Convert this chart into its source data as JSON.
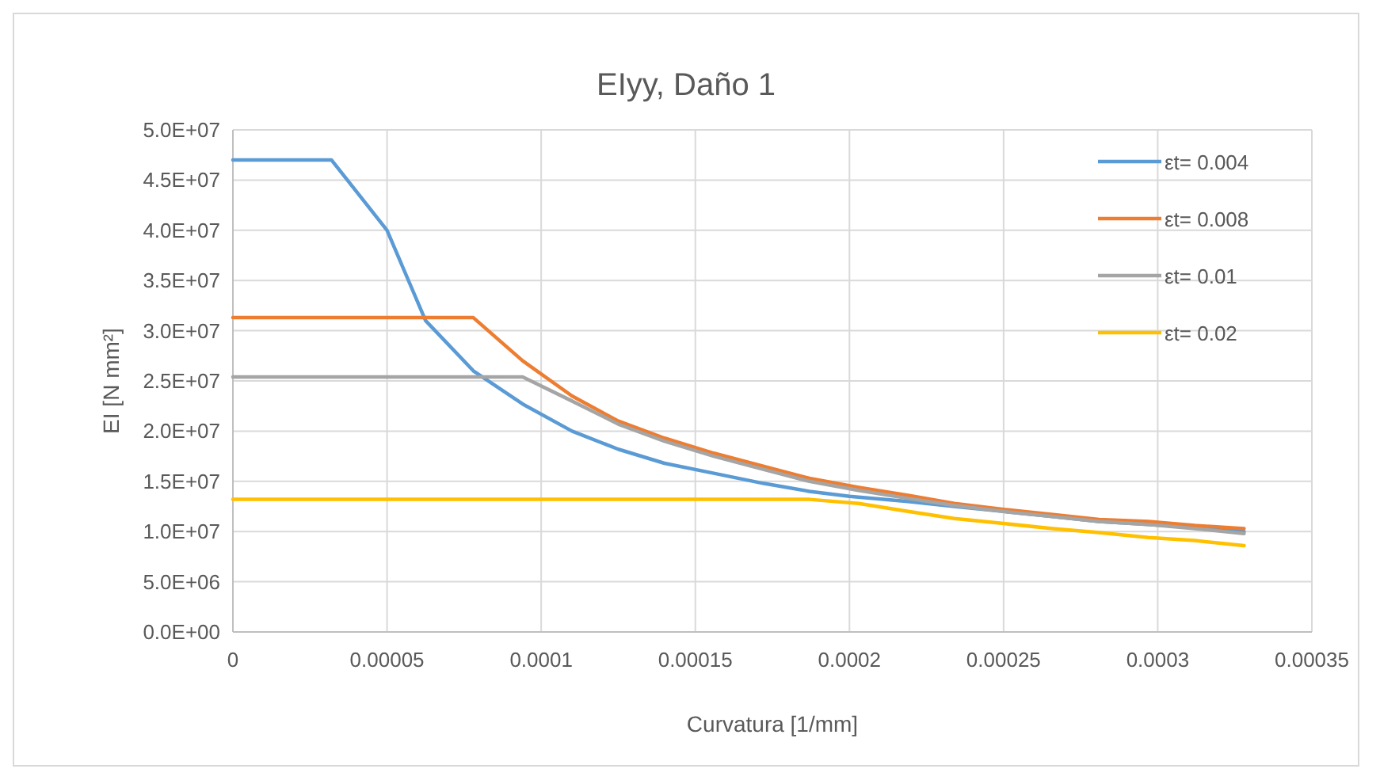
{
  "chart_data": {
    "type": "line",
    "title": "EIyy, Daño 1",
    "xlabel": "Curvatura [1/mm]",
    "ylabel": "EI [N mm²]",
    "xlim": [
      0,
      0.00035
    ],
    "xticks": [
      0,
      {
        "value": 5e-05,
        "label": "0.00005"
      },
      0.0001,
      0.00015,
      0.0002,
      0.00025,
      0.0003,
      0.00035
    ],
    "ylim": [
      0,
      50000000
    ],
    "yticks": [
      {
        "value": 0,
        "label": "0.0E+00"
      },
      {
        "value": 5000000,
        "label": "5.0E+06"
      },
      {
        "value": 10000000,
        "label": "1.0E+07"
      },
      {
        "value": 15000000,
        "label": "1.5E+07"
      },
      {
        "value": 20000000,
        "label": "2.0E+07"
      },
      {
        "value": 25000000,
        "label": "2.5E+07"
      },
      {
        "value": 30000000,
        "label": "3.0E+07"
      },
      {
        "value": 35000000,
        "label": "3.5E+07"
      },
      {
        "value": 40000000,
        "label": "4.0E+07"
      },
      {
        "value": 45000000,
        "label": "4.5E+07"
      },
      {
        "value": 50000000,
        "label": "5.0E+07"
      }
    ],
    "grid": true,
    "legend": "top right",
    "marker": "none",
    "line_style": "solid",
    "series": [
      {
        "name": "εt= 0.004",
        "color": "#5b9bd5",
        "x": [
          0,
          3.2e-05,
          5e-05,
          6.25e-05,
          7.8e-05,
          9.4e-05,
          0.00011,
          0.000125,
          0.00014,
          0.000156,
          0.000172,
          0.000187,
          0.0002,
          0.000219,
          0.000234,
          0.00025,
          0.000266,
          0.000281,
          0.000297,
          0.000312,
          0.000328
        ],
        "values": [
          47000000,
          47000000,
          40000000,
          31000000,
          26000000,
          22700000,
          20000000,
          18200000,
          16800000,
          15800000,
          14800000,
          14000000,
          13500000,
          13000000,
          12500000,
          12000000,
          11500000,
          11000000,
          10700000,
          10400000,
          10000000
        ]
      },
      {
        "name": "εt= 0.008",
        "color": "#ed7d31",
        "x": [
          0,
          7.8e-05,
          9.4e-05,
          0.00011,
          0.000125,
          0.00014,
          0.000156,
          0.000172,
          0.000187,
          0.000203,
          0.000219,
          0.000234,
          0.00025,
          0.000266,
          0.000281,
          0.000297,
          0.000312,
          0.000328
        ],
        "values": [
          31300000,
          31300000,
          27000000,
          23500000,
          21000000,
          19300000,
          17800000,
          16500000,
          15300000,
          14400000,
          13600000,
          12800000,
          12200000,
          11700000,
          11200000,
          11000000,
          10600000,
          10300000
        ]
      },
      {
        "name": "εt= 0.01",
        "color": "#a5a5a5",
        "x": [
          0,
          9.4e-05,
          0.00011,
          0.000125,
          0.00014,
          0.000156,
          0.000172,
          0.000187,
          0.000203,
          0.000219,
          0.000234,
          0.00025,
          0.000266,
          0.000281,
          0.000297,
          0.000312,
          0.000328
        ],
        "values": [
          25400000,
          25400000,
          23000000,
          20700000,
          19000000,
          17500000,
          16200000,
          15000000,
          14100000,
          13300000,
          12600000,
          12000000,
          11500000,
          11000000,
          10700000,
          10300000,
          9800000
        ]
      },
      {
        "name": "εt= 0.02",
        "color": "#ffc000",
        "x": [
          0,
          0.000187,
          0.000203,
          0.000219,
          0.000234,
          0.00025,
          0.000266,
          0.000281,
          0.000297,
          0.000312,
          0.000328
        ],
        "values": [
          13200000,
          13200000,
          12800000,
          12000000,
          11300000,
          10800000,
          10300000,
          9900000,
          9400000,
          9100000,
          8600000
        ]
      }
    ]
  }
}
